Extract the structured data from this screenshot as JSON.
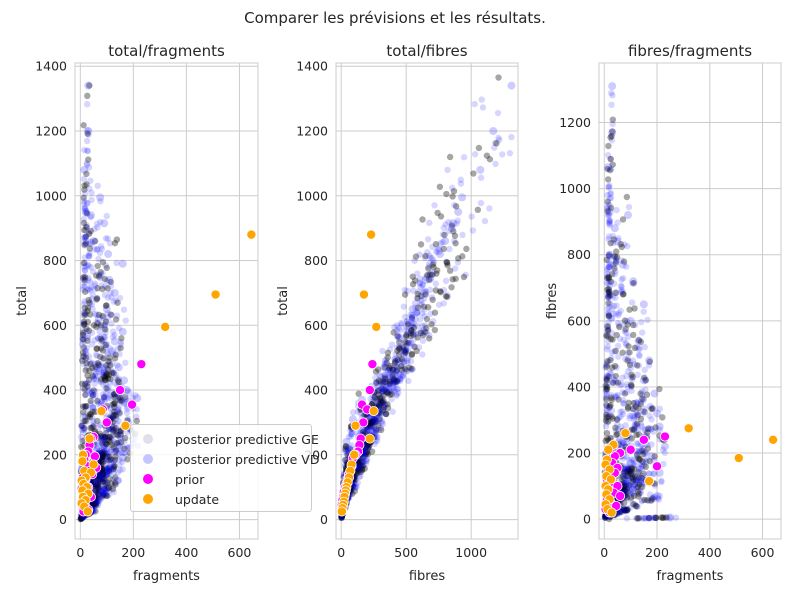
{
  "suptitle": "Comparer les prévisions et les résultats.",
  "legend": [
    {
      "label": "posterior predictive GE",
      "color": "#e0e0ea"
    },
    {
      "label": "posterior predictive VD",
      "color": "#c5c5ff"
    },
    {
      "label": "prior",
      "color": "#ff00ff"
    },
    {
      "label": "update",
      "color": "#ffa500"
    }
  ],
  "chart_data": [
    {
      "type": "scatter",
      "title": "total/fragments",
      "xlabel": "fragments",
      "ylabel": "total",
      "xlim": [
        -20,
        670
      ],
      "ylim": [
        -60,
        1410
      ],
      "xticks": [
        0,
        200,
        400,
        600
      ],
      "yticks": [
        0,
        200,
        400,
        600,
        800,
        1000,
        1200,
        1400
      ],
      "grid": true,
      "series": [
        {
          "name": "posterior predictive VD",
          "color": "#0000ff",
          "points": [
            [
              30,
              1340
            ],
            [
              30,
              1200
            ],
            [
              15,
              1080
            ],
            [
              75,
              995
            ],
            [
              20,
              950
            ],
            [
              40,
              940
            ],
            [
              90,
              915
            ],
            [
              50,
              860
            ],
            [
              40,
              855
            ],
            [
              105,
              820
            ],
            [
              160,
              790
            ],
            [
              110,
              740
            ],
            [
              130,
              700
            ],
            [
              100,
              650
            ],
            [
              70,
              620
            ],
            [
              160,
              580
            ],
            [
              130,
              550
            ],
            [
              120,
              520
            ],
            [
              145,
              470
            ],
            [
              165,
              430
            ],
            [
              175,
              400
            ],
            [
              150,
              390
            ],
            [
              215,
              375
            ],
            [
              170,
              360
            ],
            [
              140,
              340
            ],
            [
              120,
              320
            ],
            [
              180,
              300
            ],
            [
              100,
              280
            ],
            [
              150,
              260
            ],
            [
              200,
              250
            ],
            [
              90,
              230
            ],
            [
              130,
              210
            ],
            [
              160,
              190
            ],
            [
              60,
              180
            ],
            [
              110,
              160
            ],
            [
              80,
              140
            ],
            [
              140,
              120
            ],
            [
              40,
              110
            ],
            [
              100,
              95
            ],
            [
              30,
              80
            ],
            [
              70,
              60
            ],
            [
              20,
              40
            ],
            [
              50,
              30
            ],
            [
              10,
              10
            ]
          ]
        },
        {
          "name": "prior",
          "color": "#ff00ff",
          "points": [
            [
              230,
              480
            ],
            [
              195,
              355
            ],
            [
              150,
              400
            ],
            [
              85,
              340
            ],
            [
              100,
              300
            ],
            [
              50,
              255
            ],
            [
              40,
              250
            ],
            [
              35,
              230
            ],
            [
              30,
              210
            ],
            [
              20,
              200
            ],
            [
              55,
              195
            ],
            [
              15,
              185
            ],
            [
              25,
              165
            ],
            [
              60,
              160
            ],
            [
              35,
              150
            ],
            [
              45,
              140
            ],
            [
              10,
              130
            ],
            [
              20,
              125
            ],
            [
              15,
              110
            ],
            [
              30,
              100
            ],
            [
              5,
              95
            ],
            [
              25,
              85
            ],
            [
              10,
              75
            ],
            [
              40,
              70
            ],
            [
              15,
              60
            ],
            [
              8,
              50
            ],
            [
              20,
              40
            ],
            [
              30,
              30
            ],
            [
              12,
              25
            ]
          ]
        },
        {
          "name": "update",
          "color": "#ffa500",
          "points": [
            [
              645,
              880
            ],
            [
              510,
              695
            ],
            [
              320,
              595
            ],
            [
              170,
              290
            ],
            [
              80,
              335
            ],
            [
              35,
              250
            ],
            [
              10,
              200
            ],
            [
              8,
              180
            ],
            [
              50,
              170
            ],
            [
              15,
              150
            ],
            [
              40,
              145
            ],
            [
              20,
              130
            ],
            [
              5,
              120
            ],
            [
              12,
              110
            ],
            [
              25,
              100
            ],
            [
              8,
              90
            ],
            [
              30,
              80
            ],
            [
              10,
              70
            ],
            [
              20,
              60
            ],
            [
              5,
              50
            ],
            [
              15,
              40
            ],
            [
              28,
              25
            ]
          ]
        }
      ]
    },
    {
      "type": "scatter",
      "title": "total/fibres",
      "xlabel": "fibres",
      "ylabel": "total",
      "xlim": [
        -40,
        1360
      ],
      "ylim": [
        -60,
        1410
      ],
      "xticks": [
        0,
        500,
        1000
      ],
      "yticks": [
        0,
        200,
        400,
        600,
        800,
        1000,
        1200,
        1400
      ],
      "grid": true,
      "series": [
        {
          "name": "posterior predictive VD",
          "color": "#0000ff",
          "points": [
            [
              1310,
              1340
            ],
            [
              1170,
              1200
            ],
            [
              1070,
              1080
            ],
            [
              930,
              995
            ],
            [
              900,
              950
            ],
            [
              860,
              915
            ],
            [
              800,
              860
            ],
            [
              760,
              820
            ],
            [
              700,
              760
            ],
            [
              640,
              700
            ],
            [
              580,
              640
            ],
            [
              520,
              580
            ],
            [
              470,
              530
            ],
            [
              420,
              480
            ],
            [
              380,
              440
            ],
            [
              330,
              400
            ],
            [
              290,
              360
            ],
            [
              250,
              320
            ],
            [
              210,
              280
            ],
            [
              170,
              240
            ],
            [
              130,
              200
            ],
            [
              100,
              160
            ],
            [
              70,
              120
            ],
            [
              50,
              90
            ],
            [
              30,
              60
            ],
            [
              10,
              30
            ],
            [
              40,
              240
            ],
            [
              90,
              310
            ],
            [
              160,
              370
            ],
            [
              60,
              220
            ],
            [
              20,
              110
            ],
            [
              200,
              330
            ],
            [
              260,
              400
            ],
            [
              330,
              470
            ],
            [
              450,
              560
            ],
            [
              550,
              650
            ],
            [
              650,
              740
            ],
            [
              750,
              830
            ],
            [
              850,
              900
            ]
          ]
        },
        {
          "name": "prior",
          "color": "#ff00ff",
          "points": [
            [
              240,
              480
            ],
            [
              220,
              400
            ],
            [
              160,
              355
            ],
            [
              200,
              340
            ],
            [
              170,
              300
            ],
            [
              150,
              250
            ],
            [
              140,
              230
            ],
            [
              130,
              210
            ],
            [
              110,
              200
            ],
            [
              90,
              190
            ],
            [
              80,
              165
            ],
            [
              70,
              150
            ],
            [
              60,
              140
            ],
            [
              50,
              125
            ],
            [
              40,
              110
            ],
            [
              30,
              100
            ],
            [
              20,
              85
            ],
            [
              15,
              70
            ],
            [
              10,
              60
            ],
            [
              5,
              45
            ],
            [
              8,
              30
            ]
          ]
        },
        {
          "name": "update",
          "color": "#ffa500",
          "points": [
            [
              230,
              880
            ],
            [
              175,
              695
            ],
            [
              270,
              595
            ],
            [
              250,
              335
            ],
            [
              220,
              250
            ],
            [
              110,
              290
            ],
            [
              100,
              200
            ],
            [
              80,
              170
            ],
            [
              70,
              150
            ],
            [
              60,
              130
            ],
            [
              50,
              115
            ],
            [
              40,
              100
            ],
            [
              35,
              90
            ],
            [
              30,
              80
            ],
            [
              25,
              70
            ],
            [
              20,
              55
            ],
            [
              15,
              45
            ],
            [
              10,
              35
            ],
            [
              5,
              25
            ]
          ]
        }
      ]
    },
    {
      "type": "scatter",
      "title": "fibres/fragments",
      "xlabel": "fragments",
      "ylabel": "fibres",
      "xlim": [
        -20,
        670
      ],
      "ylim": [
        -60,
        1380
      ],
      "xticks": [
        0,
        200,
        400,
        600
      ],
      "yticks": [
        0,
        200,
        400,
        600,
        800,
        1000,
        1200
      ],
      "grid": true,
      "series": [
        {
          "name": "posterior predictive VD",
          "color": "#0000ff",
          "points": [
            [
              30,
              1310
            ],
            [
              30,
              1170
            ],
            [
              15,
              1065
            ],
            [
              20,
              930
            ],
            [
              90,
              920
            ],
            [
              40,
              880
            ],
            [
              50,
              840
            ],
            [
              20,
              800
            ],
            [
              70,
              770
            ],
            [
              110,
              720
            ],
            [
              150,
              650
            ],
            [
              100,
              600
            ],
            [
              130,
              540
            ],
            [
              170,
              480
            ],
            [
              150,
              420
            ],
            [
              190,
              380
            ],
            [
              120,
              350
            ],
            [
              200,
              320
            ],
            [
              210,
              280
            ],
            [
              160,
              250
            ],
            [
              230,
              220
            ],
            [
              180,
              190
            ],
            [
              100,
              170
            ],
            [
              210,
              140
            ],
            [
              140,
              120
            ],
            [
              90,
              100
            ],
            [
              60,
              80
            ],
            [
              200,
              70
            ],
            [
              250,
              5
            ],
            [
              40,
              60
            ],
            [
              20,
              40
            ],
            [
              10,
              20
            ],
            [
              80,
              30
            ]
          ]
        },
        {
          "name": "prior",
          "color": "#ff00ff",
          "points": [
            [
              230,
              250
            ],
            [
              200,
              160
            ],
            [
              150,
              240
            ],
            [
              100,
              210
            ],
            [
              60,
              200
            ],
            [
              40,
              190
            ],
            [
              20,
              210
            ],
            [
              30,
              170
            ],
            [
              50,
              155
            ],
            [
              15,
              150
            ],
            [
              40,
              140
            ],
            [
              10,
              120
            ],
            [
              25,
              110
            ],
            [
              50,
              100
            ],
            [
              15,
              90
            ],
            [
              35,
              80
            ],
            [
              60,
              70
            ],
            [
              10,
              60
            ],
            [
              25,
              50
            ],
            [
              45,
              40
            ],
            [
              5,
              30
            ],
            [
              20,
              20
            ]
          ]
        },
        {
          "name": "update",
          "color": "#ffa500",
          "points": [
            [
              640,
              240
            ],
            [
              510,
              185
            ],
            [
              320,
              275
            ],
            [
              170,
              115
            ],
            [
              80,
              260
            ],
            [
              35,
              225
            ],
            [
              15,
              210
            ],
            [
              10,
              180
            ],
            [
              5,
              165
            ],
            [
              20,
              150
            ],
            [
              8,
              130
            ],
            [
              25,
              120
            ],
            [
              5,
              100
            ],
            [
              15,
              90
            ],
            [
              8,
              75
            ],
            [
              20,
              60
            ],
            [
              5,
              45
            ],
            [
              12,
              30
            ],
            [
              28,
              20
            ]
          ]
        }
      ]
    }
  ]
}
